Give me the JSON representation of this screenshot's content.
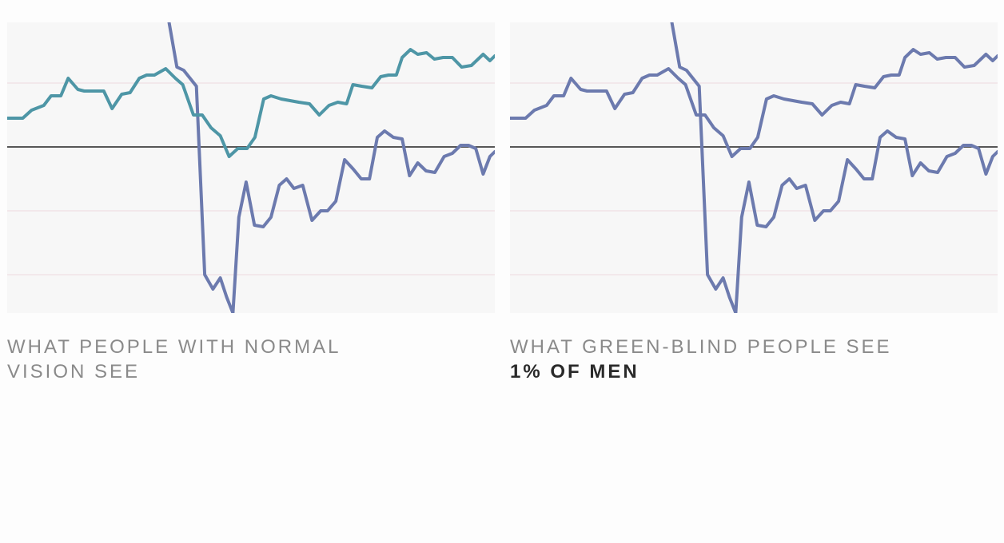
{
  "colors": {
    "background": "#fdfdfd",
    "plot_background": "#f7f7f7",
    "gridline": "#f1e4e7",
    "zero_line": "#222222",
    "teal": "#4e96a6",
    "slate_blue": "#6c7aae"
  },
  "chart_data": [
    {
      "type": "line",
      "title": "",
      "xlabel": "",
      "ylabel": "",
      "xlim": [
        0,
        100
      ],
      "ylim": [
        -5.2,
        3.9
      ],
      "zero_line": 0,
      "gridlines": [
        2,
        -2,
        -4
      ],
      "grid": true,
      "legend": "none",
      "series": [
        {
          "color": "#6c7aae",
          "x": [
            33.2,
            34.8,
            36.2,
            38.8,
            40.5,
            42.2,
            43.7,
            45.0,
            46.3,
            47.5,
            49.0,
            50.7,
            52.5,
            54.1,
            55.8,
            57.3,
            58.8,
            60.6,
            62.5,
            64.3,
            65.7,
            67.4,
            69.2,
            71.0,
            72.6,
            74.3,
            75.9,
            77.4,
            79.2,
            81.0,
            82.5,
            84.2,
            85.9,
            87.7,
            89.6,
            91.3,
            93.0,
            94.6,
            96.1,
            97.6,
            99.0,
            100.0
          ],
          "y": [
            3.9,
            2.5,
            2.4,
            1.9,
            -4.0,
            -4.45,
            -4.1,
            -4.7,
            -5.2,
            -2.2,
            -1.1,
            -2.45,
            -2.5,
            -2.2,
            -1.2,
            -1.0,
            -1.3,
            -1.2,
            -2.3,
            -2.0,
            -2.0,
            -1.7,
            -0.4,
            -0.7,
            -1.0,
            -1.0,
            0.3,
            0.5,
            0.3,
            0.25,
            -0.9,
            -0.5,
            -0.75,
            -0.8,
            -0.3,
            -0.2,
            0.05,
            0.05,
            -0.05,
            -0.85,
            -0.3,
            -0.15
          ]
        },
        {
          "color": "#4e96a6",
          "color_simulated": "#6c7aae",
          "x": [
            0.0,
            3.2,
            5.0,
            7.5,
            9.0,
            11.0,
            12.5,
            14.5,
            15.8,
            17.5,
            19.8,
            21.5,
            23.5,
            25.2,
            27.1,
            28.6,
            30.2,
            32.5,
            34.5,
            36.0,
            38.2,
            40.0,
            41.8,
            43.7,
            45.5,
            47.3,
            49.2,
            50.8,
            52.6,
            54.1,
            56.2,
            58.0,
            59.8,
            62.0,
            64.0,
            66.0,
            67.8,
            69.6,
            70.9,
            72.7,
            74.8,
            76.6,
            78.2,
            79.8,
            81.0,
            82.7,
            84.2,
            86.0,
            87.6,
            89.4,
            91.3,
            93.2,
            95.2,
            97.6,
            99.0,
            100.0
          ],
          "y": [
            0.9,
            0.9,
            1.15,
            1.3,
            1.6,
            1.6,
            2.15,
            1.8,
            1.75,
            1.75,
            1.75,
            1.2,
            1.65,
            1.7,
            2.15,
            2.25,
            2.25,
            2.45,
            2.15,
            1.95,
            1.0,
            1.0,
            0.6,
            0.35,
            -0.3,
            -0.05,
            -0.05,
            0.3,
            1.5,
            1.6,
            1.5,
            1.45,
            1.4,
            1.35,
            1.0,
            1.3,
            1.4,
            1.35,
            1.95,
            1.9,
            1.85,
            2.2,
            2.25,
            2.25,
            2.8,
            3.05,
            2.9,
            2.95,
            2.75,
            2.8,
            2.8,
            2.5,
            2.55,
            2.9,
            2.7,
            2.85
          ]
        }
      ]
    },
    {
      "type": "line",
      "title": "",
      "xlabel": "",
      "ylabel": "",
      "xlim": [
        0,
        100
      ],
      "ylim": [
        -5.2,
        3.9
      ],
      "zero_line": 0,
      "gridlines": [
        2,
        -2,
        -4
      ],
      "grid": true,
      "legend": "none",
      "series": [
        {
          "color": "#6c7aae",
          "x": [
            33.2,
            34.8,
            36.2,
            38.8,
            40.5,
            42.2,
            43.7,
            45.0,
            46.3,
            47.5,
            49.0,
            50.7,
            52.5,
            54.1,
            55.8,
            57.3,
            58.8,
            60.6,
            62.5,
            64.3,
            65.7,
            67.4,
            69.2,
            71.0,
            72.6,
            74.3,
            75.9,
            77.4,
            79.2,
            81.0,
            82.5,
            84.2,
            85.9,
            87.7,
            89.6,
            91.3,
            93.0,
            94.6,
            96.1,
            97.6,
            99.0,
            100.0
          ],
          "y": [
            3.9,
            2.5,
            2.4,
            1.9,
            -4.0,
            -4.45,
            -4.1,
            -4.7,
            -5.2,
            -2.2,
            -1.1,
            -2.45,
            -2.5,
            -2.2,
            -1.2,
            -1.0,
            -1.3,
            -1.2,
            -2.3,
            -2.0,
            -2.0,
            -1.7,
            -0.4,
            -0.7,
            -1.0,
            -1.0,
            0.3,
            0.5,
            0.3,
            0.25,
            -0.9,
            -0.5,
            -0.75,
            -0.8,
            -0.3,
            -0.2,
            0.05,
            0.05,
            -0.05,
            -0.85,
            -0.3,
            -0.15
          ]
        },
        {
          "color": "#6c7aae",
          "x": [
            0.0,
            3.2,
            5.0,
            7.5,
            9.0,
            11.0,
            12.5,
            14.5,
            15.8,
            17.5,
            19.8,
            21.5,
            23.5,
            25.2,
            27.1,
            28.6,
            30.2,
            32.5,
            34.5,
            36.0,
            38.2,
            40.0,
            41.8,
            43.7,
            45.5,
            47.3,
            49.2,
            50.8,
            52.6,
            54.1,
            56.2,
            58.0,
            59.8,
            62.0,
            64.0,
            66.0,
            67.8,
            69.6,
            70.9,
            72.7,
            74.8,
            76.6,
            78.2,
            79.8,
            81.0,
            82.7,
            84.2,
            86.0,
            87.6,
            89.4,
            91.3,
            93.2,
            95.2,
            97.6,
            99.0,
            100.0
          ],
          "y": [
            0.9,
            0.9,
            1.15,
            1.3,
            1.6,
            1.6,
            2.15,
            1.8,
            1.75,
            1.75,
            1.75,
            1.2,
            1.65,
            1.7,
            2.15,
            2.25,
            2.25,
            2.45,
            2.15,
            1.95,
            1.0,
            1.0,
            0.6,
            0.35,
            -0.3,
            -0.05,
            -0.05,
            0.3,
            1.5,
            1.6,
            1.5,
            1.45,
            1.4,
            1.35,
            1.0,
            1.3,
            1.4,
            1.35,
            1.95,
            1.9,
            1.85,
            2.2,
            2.25,
            2.25,
            2.8,
            3.05,
            2.9,
            2.95,
            2.75,
            2.8,
            2.8,
            2.5,
            2.55,
            2.9,
            2.7,
            2.85
          ]
        }
      ]
    }
  ],
  "captions": {
    "left": {
      "line1": "WHAT PEOPLE WITH NORMAL",
      "line2": "VISION SEE"
    },
    "right": {
      "line1": "WHAT GREEN-BLIND PEOPLE SEE",
      "bold": "1% OF MEN"
    }
  }
}
